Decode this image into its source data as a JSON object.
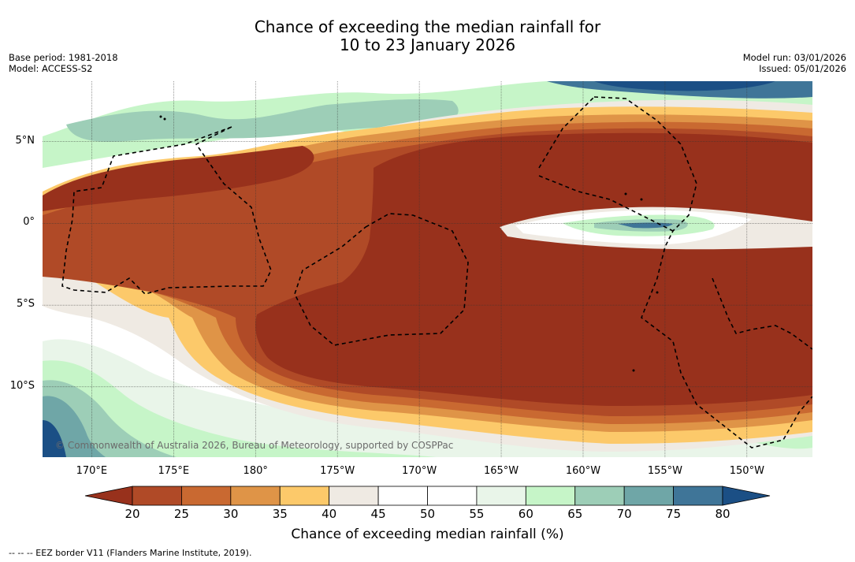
{
  "title_line1": "Chance of exceeding the median rainfall for",
  "title_line2": "10 to 23 January 2026",
  "meta_left": [
    "Base period: 1981-2018",
    "Model: ACCESS-S2"
  ],
  "meta_right": [
    "Model run: 03/01/2026",
    "Issued: 05/01/2026"
  ],
  "copyright": "© Commonwealth of Australia 2026, Bureau of Meteorology, supported by COSPPac",
  "footnote": "--  --  -- EEZ border V11 (Flanders Marine Institute, 2019).",
  "colorbar": {
    "label": "Chance of exceeding median rainfall (%)",
    "ticks": [
      "20",
      "25",
      "30",
      "35",
      "40",
      "45",
      "50",
      "55",
      "60",
      "65",
      "70",
      "75",
      "80"
    ],
    "colors": [
      "#98311c",
      "#b04a27",
      "#c96931",
      "#df9447",
      "#fcc96a",
      "#efeae3",
      "#ffffff",
      "#ffffff",
      "#e9f5e9",
      "#c6f5c8",
      "#9dceb7",
      "#6fa6a7",
      "#3f7598",
      "#1b4f85"
    ]
  },
  "map": {
    "lat_labels": [
      "5°N",
      "0°",
      "5°S",
      "10°S"
    ],
    "lon_labels": [
      "170°E",
      "175°E",
      "180°",
      "175°W",
      "170°W",
      "165°W",
      "160°W",
      "155°W",
      "150°W"
    ],
    "lat_range": [
      -14.3,
      8.7
    ],
    "lon_range": [
      167.0,
      214.0
    ],
    "lat_lines": [
      5,
      0,
      -5,
      -10
    ],
    "lon_lines": [
      170,
      175,
      180,
      185,
      190,
      195,
      200,
      205,
      210
    ],
    "colors": {
      "dry_strong": "#98311c",
      "dry_2": "#b04a27",
      "dry_3": "#c96931",
      "dry_4": "#df9447",
      "dry_5": "#fcc96a",
      "neutral": "#efeae3",
      "white": "#ffffff",
      "wet_1": "#e9f5e9",
      "wet_2": "#c6f5c8",
      "wet_3": "#9dceb7",
      "wet_4": "#6fa6a7",
      "wet_5": "#3f7598",
      "wet_6": "#1b4f85"
    }
  }
}
